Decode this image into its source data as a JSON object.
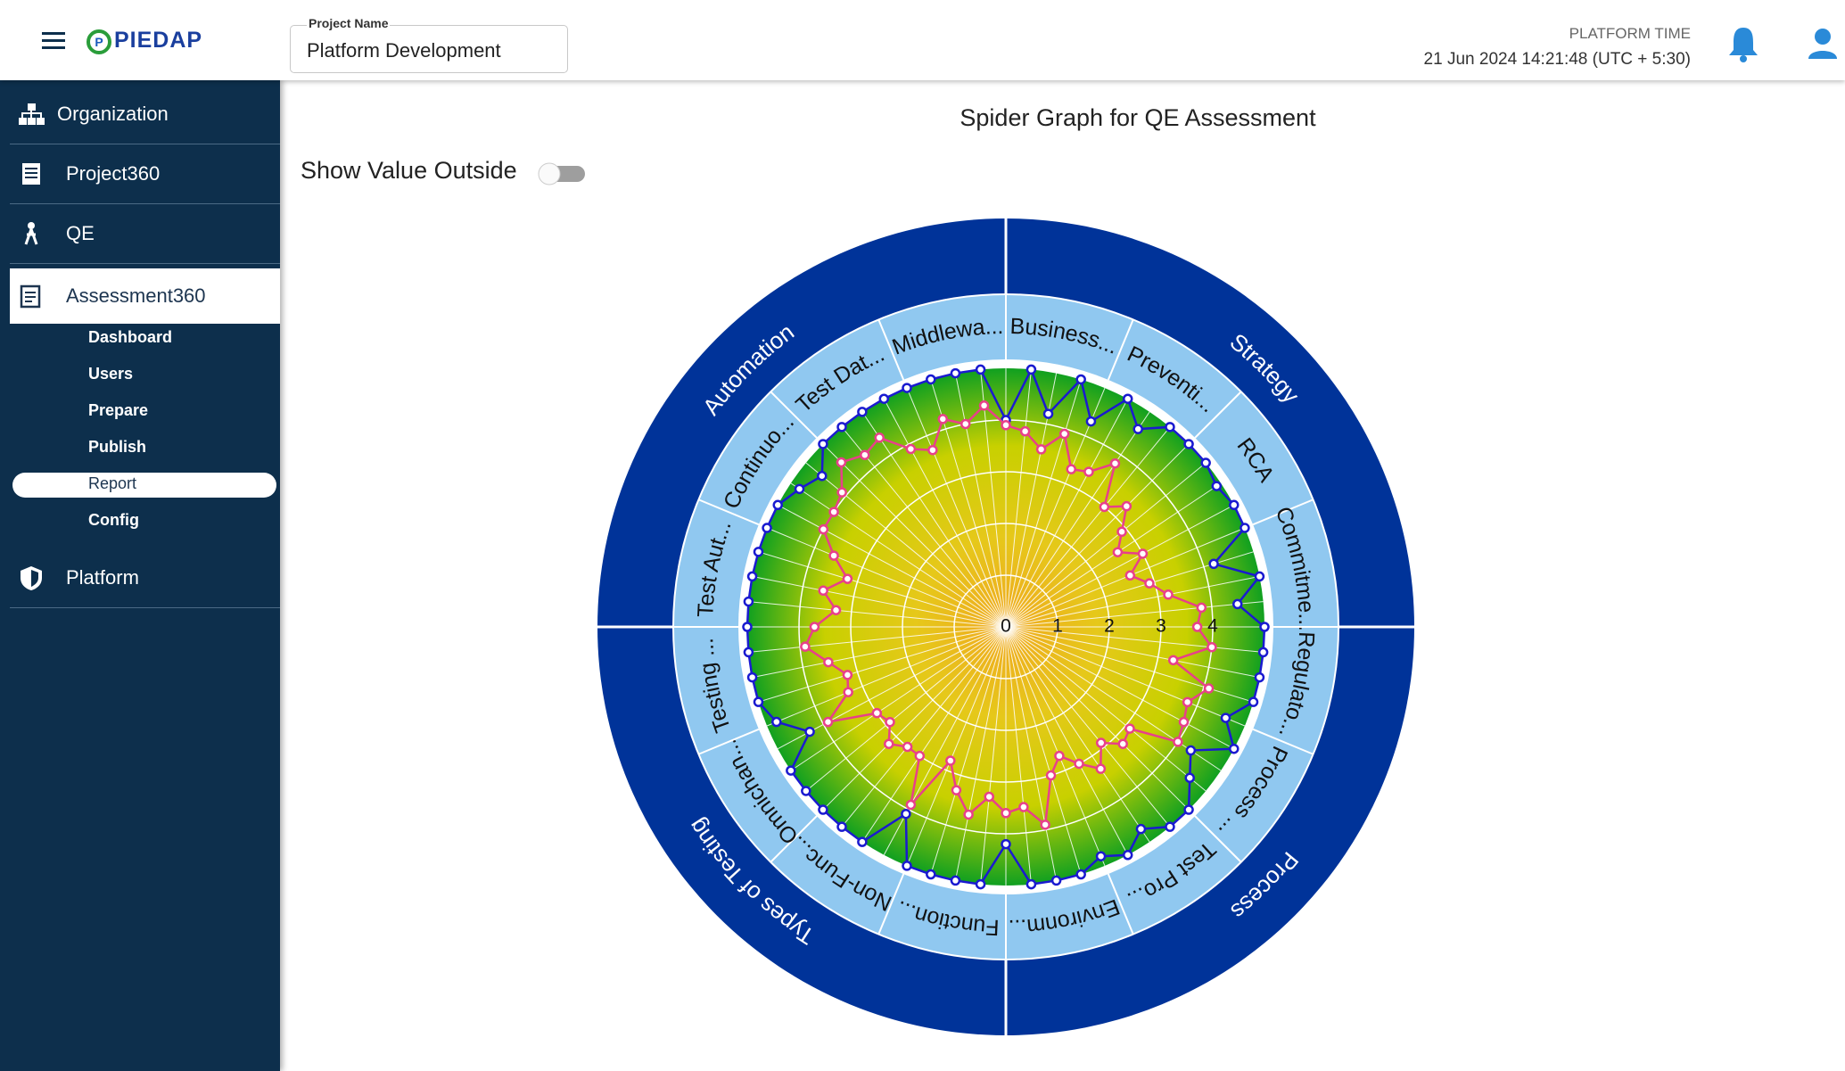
{
  "header": {
    "project_label": "Project Name",
    "project_name": "Platform Development",
    "time_label": "PLATFORM TIME",
    "time_value": "21 Jun 2024 14:21:48 (UTC + 5:30)",
    "logo": "PIEDAP"
  },
  "sidebar": {
    "items": [
      "Organization",
      "Project360",
      "QE",
      "Assessment360"
    ],
    "sub_items": [
      "Dashboard",
      "Users",
      "Prepare",
      "Publish",
      "Report",
      "Config"
    ],
    "footer_item": "Platform"
  },
  "toggle_label": "Show Value Outside",
  "chart_data": {
    "type": "radar",
    "title": "Spider Graph for QE Assessment",
    "rlim": [
      0,
      5
    ],
    "rticks": [
      0,
      1,
      2,
      3,
      4
    ],
    "grid": true,
    "groups": [
      {
        "name": "Strategy",
        "sectors": [
          "Business...",
          "Preventi...",
          "RCA",
          "Commitme..."
        ]
      },
      {
        "name": "Process",
        "sectors": [
          "Regulato...",
          "Process ...",
          "Test Pro...",
          "Environm..."
        ]
      },
      {
        "name": "Types of Testing",
        "sectors": [
          "Function...",
          "Non-Func...",
          "Omnichan...",
          "Testing ..."
        ]
      },
      {
        "name": "Automation",
        "sectors": [
          "Test Aut...",
          "Continuo...",
          "Test Dat...",
          "Middlewa..."
        ]
      }
    ],
    "series": [
      {
        "color": "#1a1ad0",
        "values": [
          4.0,
          5,
          4.2,
          5,
          4.3,
          5,
          4.6,
          5,
          5,
          5,
          4.9,
          5,
          5,
          4.2,
          5,
          4.5,
          5,
          5,
          5,
          5,
          4.6,
          5,
          4.3,
          4.6,
          5,
          5,
          4.7,
          5,
          4.8,
          5,
          5,
          5,
          4.2,
          5,
          5,
          5,
          5,
          4.1,
          5,
          5,
          5,
          5,
          5,
          4.3,
          4.8,
          5,
          5,
          5,
          5,
          5,
          5,
          5,
          5,
          5,
          4.8,
          4.6,
          5,
          5,
          5,
          5,
          5,
          5,
          5,
          5
        ]
      },
      {
        "color": "#e8408a",
        "values": [
          3.9,
          3.8,
          3.5,
          3.9,
          3.3,
          3.4,
          3.8,
          3.0,
          3.3,
          2.9,
          2.6,
          3.0,
          2.6,
          2.9,
          3.2,
          3.8,
          3.7,
          4.0,
          3.3,
          4.1,
          3.8,
          3.9,
          4.0,
          3.1,
          3.2,
          2.9,
          3.3,
          3.0,
          2.7,
          3.0,
          3.9,
          3.5,
          3.6,
          3.3,
          3.7,
          3.3,
          2.8,
          3.9,
          3.0,
          3.0,
          3.2,
          2.9,
          3.0,
          3.9,
          3.3,
          3.2,
          3.5,
          3.9,
          3.7,
          3.3,
          3.6,
          3.2,
          3.6,
          4.0,
          4.0,
          4.1,
          4.5,
          4.3,
          4.4,
          3.9,
          3.7,
          4.2,
          4.0,
          4.3
        ]
      }
    ]
  }
}
